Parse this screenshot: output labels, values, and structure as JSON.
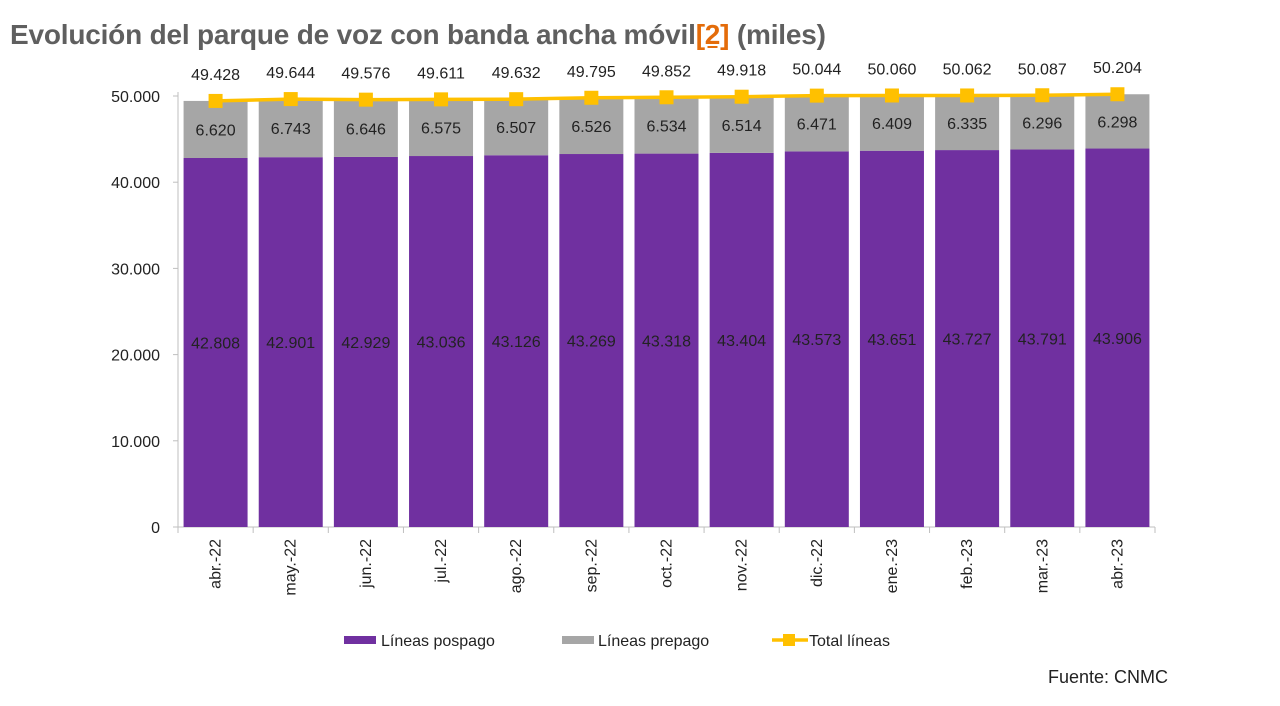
{
  "page_title": {
    "main": "Evolución del parque de voz con banda ancha móvil",
    "ref": "[2]",
    "suffix": " (miles)"
  },
  "source_label": "Fuente: CNMC",
  "colors": {
    "pospago": "#7030a0",
    "prepago": "#a6a6a6",
    "total": "#ffc000",
    "axis": "#bfbfbf",
    "text": "#222222"
  },
  "chart_data": {
    "type": "bar",
    "stacked": true,
    "title": "Evolución del parque de voz con banda ancha móvil [2] (miles)",
    "xlabel": "",
    "ylabel": "",
    "ylim": [
      0,
      50000
    ],
    "yticks": [
      0,
      10000,
      20000,
      30000,
      40000,
      50000
    ],
    "ytick_labels": [
      "0",
      "10.000",
      "20.000",
      "30.000",
      "40.000",
      "50.000"
    ],
    "categories": [
      "abr.-22",
      "may.-22",
      "jun.-22",
      "jul.-22",
      "ago.-22",
      "sep.-22",
      "oct.-22",
      "nov.-22",
      "dic.-22",
      "ene.-23",
      "feb.-23",
      "mar.-23",
      "abr.-23"
    ],
    "series": [
      {
        "name": "Líneas pospago",
        "kind": "bar",
        "values": [
          42808,
          42901,
          42929,
          43036,
          43126,
          43269,
          43318,
          43404,
          43573,
          43651,
          43727,
          43791,
          43906
        ],
        "labels": [
          "42.808",
          "42.901",
          "42.929",
          "43.036",
          "43.126",
          "43.269",
          "43.318",
          "43.404",
          "43.573",
          "43.651",
          "43.727",
          "43.791",
          "43.906"
        ]
      },
      {
        "name": "Líneas prepago",
        "kind": "bar",
        "values": [
          6620,
          6743,
          6646,
          6575,
          6507,
          6526,
          6534,
          6514,
          6471,
          6409,
          6335,
          6296,
          6298
        ],
        "labels": [
          "6.620",
          "6.743",
          "6.646",
          "6.575",
          "6.507",
          "6.526",
          "6.534",
          "6.514",
          "6.471",
          "6.409",
          "6.335",
          "6.296",
          "6.298"
        ]
      },
      {
        "name": "Total líneas",
        "kind": "line",
        "values": [
          49428,
          49644,
          49576,
          49611,
          49632,
          49795,
          49852,
          49918,
          50044,
          50060,
          50062,
          50087,
          50204
        ],
        "labels": [
          "49.428",
          "49.644",
          "49.576",
          "49.611",
          "49.632",
          "49.795",
          "49.852",
          "49.918",
          "50.044",
          "50.060",
          "50.062",
          "50.087",
          "50.204"
        ]
      }
    ],
    "legend": {
      "position": "bottom",
      "entries": [
        "Líneas pospago",
        "Líneas prepago",
        "Total líneas"
      ]
    }
  }
}
